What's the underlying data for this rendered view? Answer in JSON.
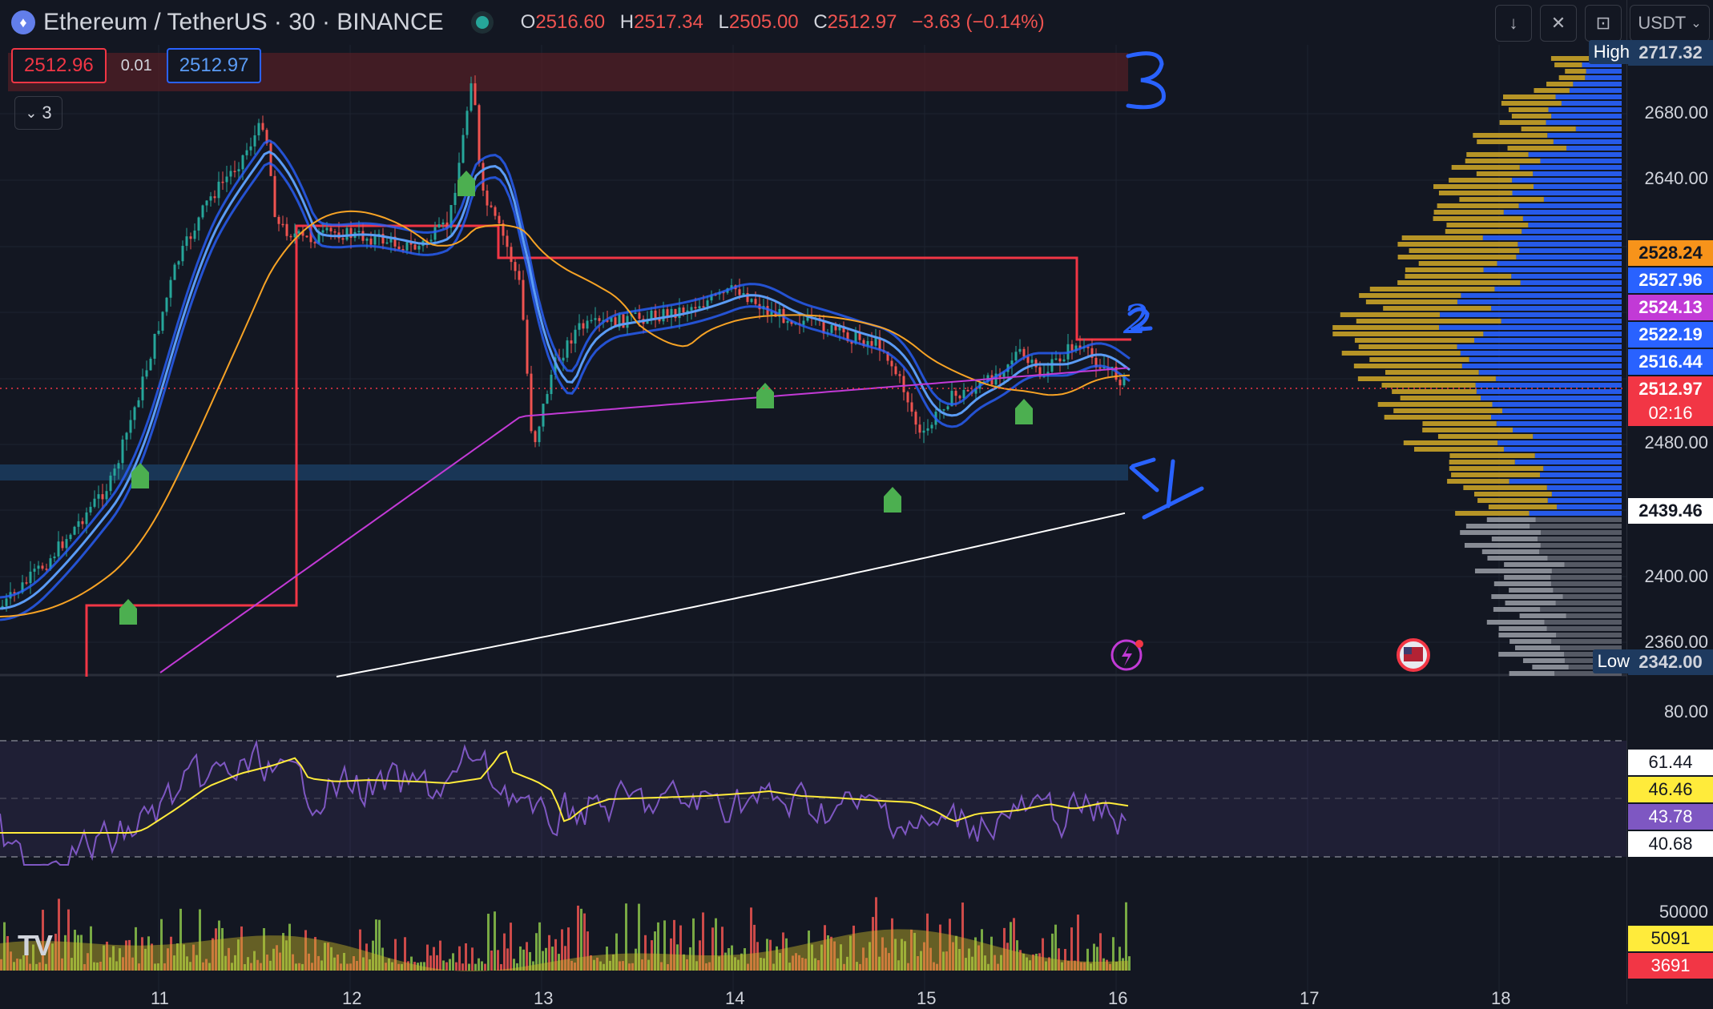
{
  "header": {
    "symbol": "Ethereum / TetherUS · 30 · BINANCE",
    "open_label": "O",
    "open": "2516.60",
    "high_label": "H",
    "high": "2517.34",
    "low_label": "L",
    "low": "2505.00",
    "close_label": "C",
    "close": "2512.97",
    "change": "−3.63 (−0.14%)",
    "currency": "USDT",
    "buttons": [
      "↓",
      "✕",
      "⊡"
    ]
  },
  "trade": {
    "sell": "2512.96",
    "spread": "0.01",
    "buy": "2512.97"
  },
  "indicators_collapse": "3",
  "drawings": {
    "label_3": "3",
    "label_2": "2",
    "label_1": "1"
  },
  "price_axis": {
    "ticks": [
      "2680.00",
      "2640.00",
      "2480.00",
      "2400.00",
      "2360.00"
    ],
    "labels": {
      "top": "2717.32",
      "l1": "2528.24",
      "l2": "2527.96",
      "l3": "2524.13",
      "l4": "2522.19",
      "l5": "2516.44",
      "last": "2512.97",
      "countdown": "02:16",
      "ma200": "2439.46",
      "low": "2342.00"
    },
    "high_tag": "High",
    "low_tag": "Low"
  },
  "rsi_axis": {
    "tick": "80.00",
    "values": [
      "61.44",
      "46.46",
      "43.78",
      "40.68"
    ]
  },
  "vol_axis": {
    "tick": "50000",
    "v1": "5091",
    "v2": "3691"
  },
  "time_axis": [
    "11",
    "12",
    "13",
    "14",
    "15",
    "16",
    "17",
    "18"
  ],
  "logo": "TV",
  "colors": {
    "bg": "#131722",
    "up": "#26a69a",
    "down": "#ef5350",
    "band": "#2962ff",
    "ma_orange": "#f7a325",
    "ma_purple": "#c23ad6",
    "ma_white": "#ffffff",
    "rsi": "#7e57c2",
    "rsi_ma": "#ffeb3b",
    "vp_up": "#2962ff",
    "vp_down": "#c9a227"
  }
}
